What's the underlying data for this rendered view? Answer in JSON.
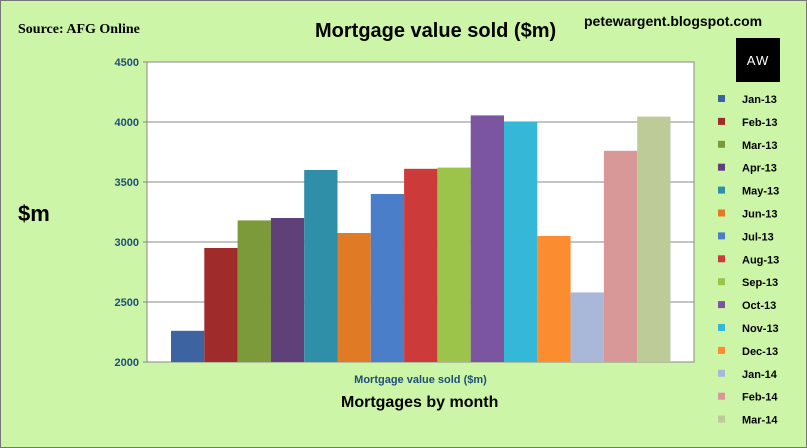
{
  "header": {
    "source": "Source: AFG Online",
    "blog": "petewargent.blogspot.com",
    "logo_text": "AW"
  },
  "chart_data": {
    "type": "bar",
    "title": "Mortgage value sold ($m)",
    "ylabel": "$m",
    "xlabel": "Mortgages by month",
    "category_label": "Mortgage value sold ($m)",
    "ylim": [
      2000,
      4500
    ],
    "yticks": [
      2000,
      2500,
      3000,
      3500,
      4000,
      4500
    ],
    "grid": true,
    "legend_position": "right",
    "series": [
      {
        "name": "Jan-13",
        "value": 2260,
        "color": "#3d63a0"
      },
      {
        "name": "Feb-13",
        "value": 2950,
        "color": "#a02b2b"
      },
      {
        "name": "Mar-13",
        "value": 3180,
        "color": "#7d9a3a"
      },
      {
        "name": "Apr-13",
        "value": 3200,
        "color": "#604078"
      },
      {
        "name": "May-13",
        "value": 3600,
        "color": "#2f8fa8"
      },
      {
        "name": "Jun-13",
        "value": 3075,
        "color": "#e07a25"
      },
      {
        "name": "Jul-13",
        "value": 3400,
        "color": "#4a7ec8"
      },
      {
        "name": "Aug-13",
        "value": 3610,
        "color": "#cc3a3a"
      },
      {
        "name": "Sep-13",
        "value": 3620,
        "color": "#9cc44a"
      },
      {
        "name": "Oct-13",
        "value": 4055,
        "color": "#7b55a0"
      },
      {
        "name": "Nov-13",
        "value": 4000,
        "color": "#35b8d8"
      },
      {
        "name": "Dec-13",
        "value": 3050,
        "color": "#fb8c30"
      },
      {
        "name": "Jan-14",
        "value": 2580,
        "color": "#a9b8d8"
      },
      {
        "name": "Feb-14",
        "value": 3760,
        "color": "#d89898"
      },
      {
        "name": "Mar-14",
        "value": 4045,
        "color": "#bccb98"
      }
    ]
  }
}
